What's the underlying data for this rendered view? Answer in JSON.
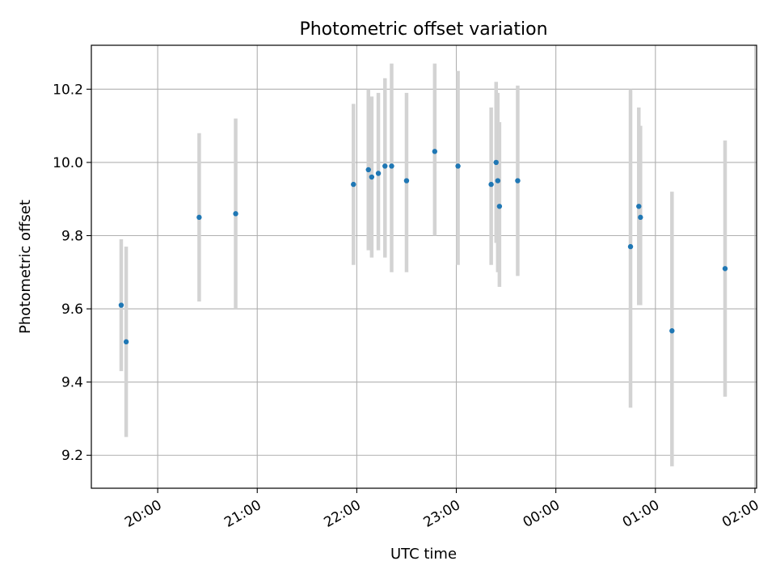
{
  "chart_data": {
    "type": "scatter",
    "title": "Photometric offset variation",
    "xlabel": "UTC time",
    "ylabel": "Photometric offset",
    "x_axis": "time",
    "x_ticks": [
      "20:00",
      "21:00",
      "22:00",
      "23:00",
      "00:00",
      "01:00",
      "02:00"
    ],
    "y_ticks": [
      "9.2",
      "9.4",
      "9.6",
      "9.8",
      "10.0",
      "10.2"
    ],
    "ylim": [
      9.11,
      10.32
    ],
    "xlim": [
      "19:20",
      "02:01"
    ],
    "grid": true,
    "errorbar_color": "#d3d3d3",
    "marker_color": "#1f77b4",
    "series": [
      {
        "points": [
          {
            "t": "19:38",
            "y": 9.61,
            "lo": 9.43,
            "hi": 9.79
          },
          {
            "t": "19:41",
            "y": 9.51,
            "lo": 9.25,
            "hi": 9.77
          },
          {
            "t": "20:25",
            "y": 9.85,
            "lo": 9.62,
            "hi": 10.08
          },
          {
            "t": "20:47",
            "y": 9.86,
            "lo": 9.6,
            "hi": 10.12
          },
          {
            "t": "21:58",
            "y": 9.94,
            "lo": 9.72,
            "hi": 10.16
          },
          {
            "t": "22:07",
            "y": 9.98,
            "lo": 9.76,
            "hi": 10.2
          },
          {
            "t": "22:09",
            "y": 9.96,
            "lo": 9.74,
            "hi": 10.18
          },
          {
            "t": "22:13",
            "y": 9.97,
            "lo": 9.76,
            "hi": 10.19
          },
          {
            "t": "22:17",
            "y": 9.99,
            "lo": 9.74,
            "hi": 10.23
          },
          {
            "t": "22:21",
            "y": 9.99,
            "lo": 9.7,
            "hi": 10.27
          },
          {
            "t": "22:30",
            "y": 9.95,
            "lo": 9.7,
            "hi": 10.19
          },
          {
            "t": "22:47",
            "y": 10.03,
            "lo": 9.8,
            "hi": 10.27
          },
          {
            "t": "23:01",
            "y": 9.99,
            "lo": 9.72,
            "hi": 10.25
          },
          {
            "t": "23:21",
            "y": 9.94,
            "lo": 9.72,
            "hi": 10.15
          },
          {
            "t": "23:24",
            "y": 10.0,
            "lo": 9.78,
            "hi": 10.22
          },
          {
            "t": "23:25",
            "y": 9.95,
            "lo": 9.7,
            "hi": 10.19
          },
          {
            "t": "23:26",
            "y": 9.88,
            "lo": 9.66,
            "hi": 10.11
          },
          {
            "t": "23:37",
            "y": 9.95,
            "lo": 9.69,
            "hi": 10.21
          },
          {
            "t": "00:45",
            "y": 9.77,
            "lo": 9.33,
            "hi": 10.2
          },
          {
            "t": "00:50",
            "y": 9.88,
            "lo": 9.61,
            "hi": 10.15
          },
          {
            "t": "00:51",
            "y": 9.85,
            "lo": 9.61,
            "hi": 10.1
          },
          {
            "t": "01:10",
            "y": 9.54,
            "lo": 9.17,
            "hi": 9.92
          },
          {
            "t": "01:42",
            "y": 9.71,
            "lo": 9.36,
            "hi": 10.06
          }
        ]
      }
    ]
  }
}
